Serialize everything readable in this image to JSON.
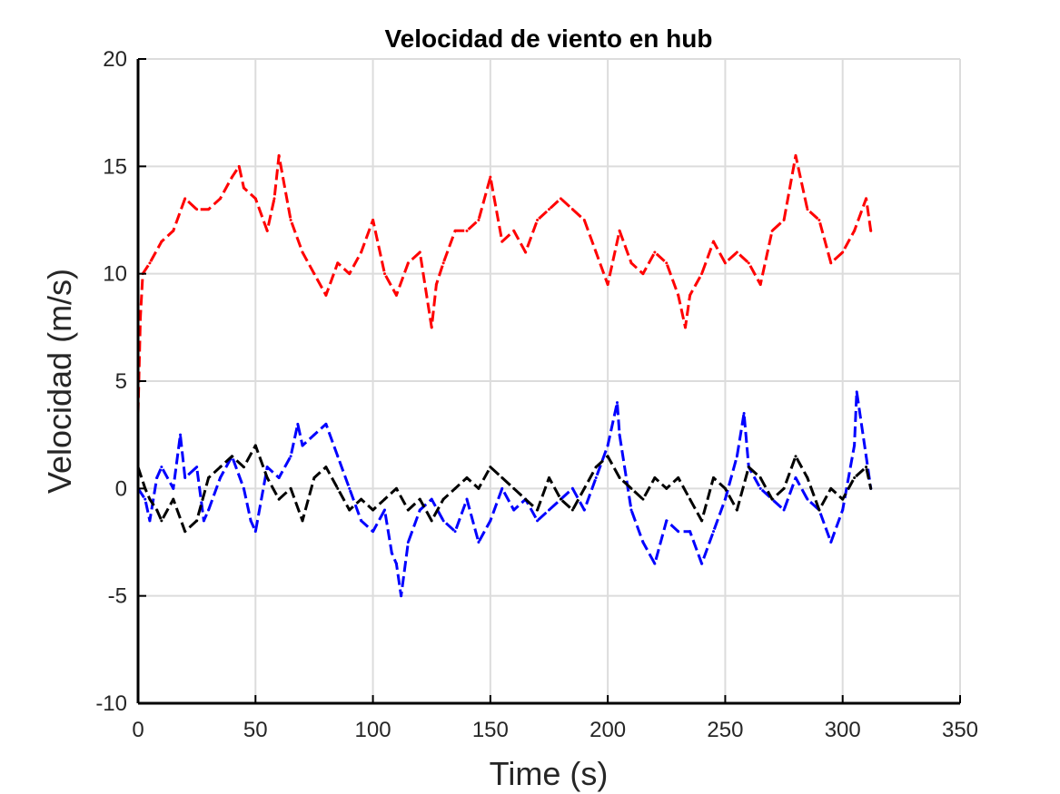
{
  "chart_data": {
    "type": "line",
    "title": "Velocidad de viento en hub",
    "xlabel": "Time (s)",
    "ylabel": "Velocidad (m/s)",
    "xlim": [
      0,
      350
    ],
    "ylim": [
      -10,
      20
    ],
    "xticks": [
      0,
      50,
      100,
      150,
      200,
      250,
      300,
      350
    ],
    "yticks": [
      -10,
      -5,
      0,
      5,
      10,
      15,
      20
    ],
    "xtick_labels": [
      "0",
      "50",
      "100",
      "150",
      "200",
      "250",
      "300",
      "350"
    ],
    "ytick_labels": [
      "-10",
      "-5",
      "0",
      "5",
      "10",
      "15",
      "20"
    ],
    "grid": true,
    "line_style": "dashed",
    "series": [
      {
        "color": "#ff0000",
        "x": [
          0,
          1,
          2,
          5,
          10,
          15,
          20,
          25,
          30,
          35,
          40,
          43,
          45,
          50,
          55,
          58,
          60,
          65,
          70,
          75,
          80,
          85,
          90,
          95,
          100,
          105,
          110,
          115,
          120,
          125,
          127,
          130,
          135,
          140,
          145,
          150,
          155,
          160,
          165,
          170,
          175,
          180,
          185,
          190,
          195,
          200,
          205,
          210,
          215,
          220,
          225,
          230,
          233,
          235,
          240,
          245,
          250,
          255,
          260,
          265,
          270,
          275,
          280,
          285,
          290,
          295,
          300,
          305,
          310,
          312
        ],
        "y": [
          3.5,
          8.0,
          10.0,
          10.5,
          11.5,
          12.0,
          13.5,
          13.0,
          13.0,
          13.5,
          14.5,
          15.0,
          14.0,
          13.5,
          12.0,
          13.5,
          15.5,
          12.5,
          11.0,
          10.0,
          9.0,
          10.5,
          10.0,
          11.0,
          12.5,
          10.0,
          9.0,
          10.5,
          11.0,
          7.5,
          9.5,
          10.5,
          12.0,
          12.0,
          12.5,
          14.5,
          11.5,
          12.0,
          11.0,
          12.5,
          13.0,
          13.5,
          13.0,
          12.5,
          11.0,
          9.5,
          12.0,
          10.5,
          10.0,
          11.0,
          10.5,
          9.0,
          7.5,
          9.0,
          10.0,
          11.5,
          10.5,
          11.0,
          10.5,
          9.5,
          12.0,
          12.5,
          15.5,
          13.0,
          12.5,
          10.5,
          11.0,
          12.0,
          13.5,
          12.0
        ]
      },
      {
        "color": "#0000ff",
        "x": [
          0,
          3,
          5,
          8,
          10,
          15,
          18,
          20,
          25,
          28,
          30,
          35,
          40,
          45,
          48,
          50,
          55,
          60,
          65,
          68,
          70,
          75,
          80,
          85,
          90,
          95,
          100,
          105,
          108,
          110,
          112,
          115,
          120,
          125,
          130,
          135,
          140,
          145,
          150,
          155,
          160,
          165,
          170,
          175,
          180,
          185,
          190,
          195,
          200,
          204,
          205,
          210,
          215,
          220,
          225,
          230,
          235,
          240,
          245,
          250,
          255,
          258,
          260,
          265,
          270,
          275,
          280,
          285,
          290,
          295,
          300,
          305,
          306,
          310,
          312
        ],
        "y": [
          0.0,
          -0.5,
          -1.5,
          0.5,
          1.0,
          0.0,
          2.5,
          0.5,
          1.0,
          -1.5,
          -1.0,
          0.5,
          1.5,
          0.0,
          -1.5,
          -2.0,
          1.0,
          0.5,
          1.5,
          3.0,
          2.0,
          2.5,
          3.0,
          1.5,
          0.0,
          -1.5,
          -2.0,
          -1.0,
          -3.0,
          -3.5,
          -5.0,
          -2.5,
          -1.0,
          -0.5,
          -1.5,
          -2.0,
          -0.5,
          -2.5,
          -1.5,
          0.0,
          -1.0,
          -0.5,
          -1.5,
          -1.0,
          -0.5,
          0.0,
          -1.0,
          0.5,
          2.0,
          4.0,
          2.5,
          -1.0,
          -2.5,
          -3.5,
          -1.5,
          -2.0,
          -2.0,
          -3.5,
          -2.0,
          -0.5,
          1.5,
          3.5,
          1.0,
          0.0,
          -0.5,
          -1.0,
          0.5,
          -0.5,
          -1.0,
          -2.5,
          -1.0,
          2.0,
          4.5,
          1.5,
          0.0
        ]
      },
      {
        "color": "#000000",
        "x": [
          0,
          3,
          5,
          8,
          10,
          15,
          20,
          25,
          30,
          35,
          40,
          45,
          50,
          55,
          60,
          65,
          70,
          75,
          80,
          85,
          90,
          95,
          100,
          105,
          110,
          115,
          120,
          125,
          130,
          135,
          140,
          145,
          150,
          155,
          160,
          165,
          170,
          175,
          180,
          185,
          190,
          195,
          200,
          205,
          210,
          215,
          220,
          225,
          230,
          235,
          240,
          245,
          250,
          255,
          260,
          265,
          270,
          275,
          280,
          285,
          290,
          295,
          300,
          305,
          310,
          312
        ],
        "y": [
          1.0,
          0.0,
          -0.5,
          -1.0,
          -1.5,
          -0.5,
          -2.0,
          -1.5,
          0.5,
          1.0,
          1.5,
          1.0,
          2.0,
          0.5,
          -0.5,
          0.0,
          -1.5,
          0.5,
          1.0,
          0.0,
          -1.0,
          -0.5,
          -1.0,
          -0.5,
          0.0,
          -1.0,
          -0.5,
          -1.5,
          -0.5,
          0.0,
          0.5,
          0.0,
          1.0,
          0.5,
          0.0,
          -0.5,
          -1.0,
          0.5,
          -0.5,
          -1.0,
          0.0,
          1.0,
          1.5,
          0.5,
          0.0,
          -0.5,
          0.5,
          0.0,
          0.5,
          -0.5,
          -1.5,
          0.5,
          0.0,
          -1.0,
          1.0,
          0.5,
          -0.5,
          0.0,
          1.5,
          0.5,
          -1.0,
          0.0,
          -0.5,
          0.5,
          1.0,
          0.0
        ]
      }
    ]
  }
}
